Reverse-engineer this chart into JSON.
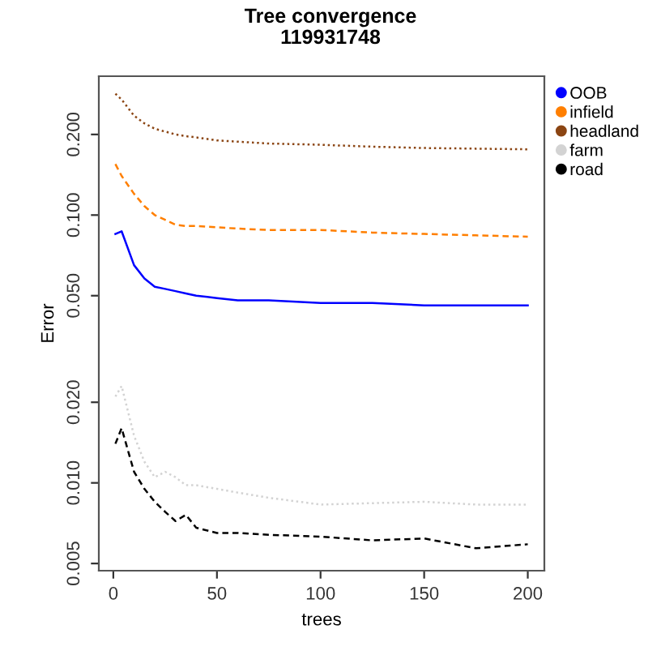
{
  "chart_data": {
    "type": "line",
    "title": "Tree convergence",
    "subtitle": "119931748",
    "xlabel": "trees",
    "ylabel": "Error",
    "log": "y",
    "grid": false,
    "legend": "top right",
    "xlim": [
      -7,
      208
    ],
    "xticks": [
      0,
      50,
      100,
      150,
      200
    ],
    "ylim": [
      0.0047,
      0.33
    ],
    "yticks": [
      {
        "value": 0.005,
        "label": "0.005"
      },
      {
        "value": 0.01,
        "label": "0.010"
      },
      {
        "value": 0.02,
        "label": "0.020"
      },
      {
        "value": 0.05,
        "label": "0.050"
      },
      {
        "value": 0.1,
        "label": "0.100"
      },
      {
        "value": 0.2,
        "label": "0.200"
      }
    ],
    "x": [
      1,
      4,
      10,
      15,
      20,
      25,
      30,
      35,
      40,
      50,
      60,
      75,
      100,
      125,
      150,
      175,
      200
    ],
    "series": [
      {
        "name": "OOB",
        "color": "#0000ff",
        "line_style": "solid",
        "values": [
          0.085,
          0.087,
          0.065,
          0.058,
          0.054,
          0.053,
          0.052,
          0.051,
          0.05,
          0.049,
          0.048,
          0.048,
          0.047,
          0.047,
          0.046,
          0.046,
          0.046
        ]
      },
      {
        "name": "infield",
        "color": "#ff7f00",
        "line_style": "dashed",
        "values": [
          0.155,
          0.14,
          0.12,
          0.108,
          0.1,
          0.096,
          0.092,
          0.091,
          0.091,
          0.09,
          0.089,
          0.088,
          0.088,
          0.086,
          0.085,
          0.084,
          0.083
        ]
      },
      {
        "name": "headland",
        "color": "#8b4513",
        "line_style": "dotted",
        "values": [
          0.284,
          0.27,
          0.235,
          0.22,
          0.21,
          0.205,
          0.2,
          0.197,
          0.195,
          0.19,
          0.188,
          0.185,
          0.183,
          0.18,
          0.178,
          0.177,
          0.176
        ]
      },
      {
        "name": "farm",
        "color": "#d3d3d3",
        "line_style": "dotted",
        "values": [
          0.021,
          0.023,
          0.015,
          0.012,
          0.0105,
          0.011,
          0.0105,
          0.0098,
          0.0098,
          0.0095,
          0.0092,
          0.0088,
          0.0083,
          0.0084,
          0.0085,
          0.0083,
          0.0083
        ]
      },
      {
        "name": "road",
        "color": "#000000",
        "line_style": "dashed",
        "values": [
          0.014,
          0.016,
          0.011,
          0.0095,
          0.0085,
          0.0078,
          0.0072,
          0.0076,
          0.0068,
          0.0065,
          0.0065,
          0.0064,
          0.0063,
          0.0061,
          0.0062,
          0.0057,
          0.0059
        ]
      }
    ]
  }
}
